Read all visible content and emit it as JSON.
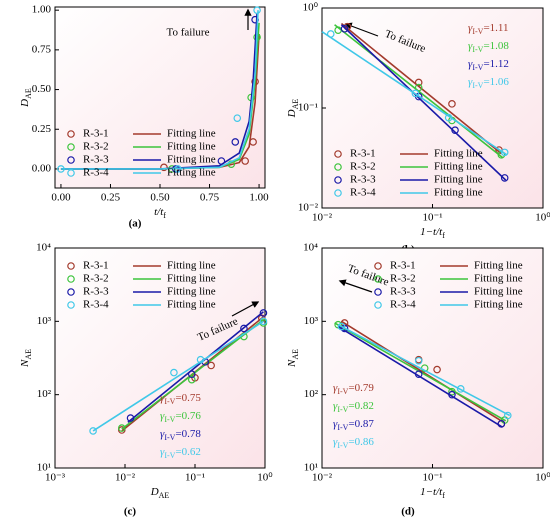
{
  "chart_data": [
    {
      "type": "scatter",
      "xscale": "linear",
      "yscale": "linear",
      "xlim": [
        -0.03,
        1.03
      ],
      "ylim": [
        -0.12,
        1.02
      ],
      "xticks": [
        {
          "value": 0,
          "label": "0.00"
        },
        {
          "value": 0.25,
          "label": "0.25"
        },
        {
          "value": 0.5,
          "label": "0.50"
        },
        {
          "value": 0.75,
          "label": "0.75"
        },
        {
          "value": 1,
          "label": "1.00"
        }
      ],
      "yticks": [
        {
          "value": 0,
          "label": "0.00"
        },
        {
          "value": 0.25,
          "label": "0.25"
        },
        {
          "value": 0.5,
          "label": "0.50"
        },
        {
          "value": 0.75,
          "label": "0.75"
        },
        {
          "value": 1,
          "label": "1.00"
        }
      ],
      "xlabel": [
        "t/t",
        "f"
      ],
      "ylabel": [
        "D",
        "AE"
      ],
      "panel_label": "(a)",
      "annotation": "To failure",
      "legend": "lower left",
      "series": [
        {
          "name": "R-3-1",
          "color": "#a33a2c",
          "x": [
            0.52,
            0.93,
            0.97,
            0.98
          ],
          "values": [
            0.01,
            0.05,
            0.17,
            0.55
          ],
          "fit": {
            "name": "Fitting line",
            "x": [
              0,
              0.5,
              0.8,
              0.9,
              0.95,
              0.98,
              1.0
            ],
            "values": [
              0,
              0,
              0.01,
              0.04,
              0.14,
              0.42,
              0.85
            ]
          }
        },
        {
          "name": "R-3-2",
          "color": "#3cc43c",
          "x": [
            0.56,
            0.86,
            0.96,
            0.99
          ],
          "values": [
            0.0,
            0.03,
            0.45,
            0.83
          ],
          "fit": {
            "name": "Fitting line",
            "x": [
              0,
              0.5,
              0.8,
              0.9,
              0.95,
              0.98,
              1.0
            ],
            "values": [
              0,
              0,
              0.01,
              0.06,
              0.22,
              0.55,
              0.92
            ]
          }
        },
        {
          "name": "R-3-3",
          "color": "#1a1aa8",
          "x": [
            0.58,
            0.81,
            0.88,
            0.98
          ],
          "values": [
            0.0,
            0.05,
            0.17,
            0.94
          ],
          "fit": {
            "name": "Fitting line",
            "x": [
              0,
              0.5,
              0.8,
              0.9,
              0.95,
              0.97,
              0.99
            ],
            "values": [
              0,
              0,
              0.02,
              0.1,
              0.3,
              0.55,
              0.98
            ]
          }
        },
        {
          "name": "R-3-4",
          "color": "#40c8e8",
          "x": [
            0.0,
            0.59,
            0.89,
            0.99
          ],
          "values": [
            0.0,
            0.0,
            0.32,
            1.0
          ],
          "fit": {
            "name": "Fitting line",
            "x": [
              0,
              0.5,
              0.8,
              0.9,
              0.95,
              0.98,
              0.995
            ],
            "values": [
              0,
              0,
              0.01,
              0.07,
              0.25,
              0.6,
              1.0
            ]
          }
        }
      ]
    },
    {
      "type": "scatter",
      "xscale": "log",
      "yscale": "log",
      "xlim": [
        0.01,
        1
      ],
      "ylim": [
        0.01,
        1
      ],
      "xticks": [
        {
          "value": 0.01,
          "label": "10⁻²"
        },
        {
          "value": 0.1,
          "label": "10⁻¹"
        },
        {
          "value": 1,
          "label": "10⁰"
        }
      ],
      "yticks": [
        {
          "value": 0.01,
          "label": "10⁻²"
        },
        {
          "value": 0.1,
          "label": "10⁻¹"
        },
        {
          "value": 1,
          "label": "10⁰"
        }
      ],
      "xlabel": [
        "1−t/t",
        "f"
      ],
      "ylabel": [
        "D",
        "AE"
      ],
      "panel_label": "(b)",
      "annotation": "To failure",
      "legend": "lower left",
      "series": [
        {
          "name": "R-3-1",
          "color": "#a33a2c",
          "x": [
            0.017,
            0.075,
            0.15,
            0.4
          ],
          "values": [
            0.65,
            0.18,
            0.11,
            0.038
          ],
          "gamma": [
            "γ",
            "I-V",
            "=1.11"
          ],
          "fit": {
            "name": "Fitting line",
            "x": [
              0.015,
              0.42
            ],
            "values": [
              0.7,
              0.035
            ]
          }
        },
        {
          "name": "R-3-2",
          "color": "#3cc43c",
          "x": [
            0.014,
            0.075,
            0.15,
            0.42
          ],
          "values": [
            0.6,
            0.16,
            0.075,
            0.034
          ],
          "gamma": [
            "γ",
            "I-V",
            "=1.08"
          ],
          "fit": {
            "name": "Fitting line",
            "x": [
              0.013,
              0.43
            ],
            "values": [
              0.68,
              0.032
            ]
          }
        },
        {
          "name": "R-3-3",
          "color": "#1a1aa8",
          "x": [
            0.016,
            0.075,
            0.16,
            0.45
          ],
          "values": [
            0.62,
            0.13,
            0.06,
            0.02
          ],
          "gamma": [
            "γ",
            "I-V",
            "=1.12"
          ],
          "fit": {
            "name": "Fitting line",
            "x": [
              0.015,
              0.46
            ],
            "values": [
              0.68,
              0.019
            ]
          }
        },
        {
          "name": "R-3-4",
          "color": "#40c8e8",
          "x": [
            0.012,
            0.07,
            0.14,
            0.45
          ],
          "values": [
            0.55,
            0.14,
            0.08,
            0.036
          ],
          "gamma": [
            "γ",
            "I-V",
            "=1.06"
          ],
          "fit": {
            "name": "Fitting line",
            "x": [
              0.01,
              0.47
            ],
            "values": [
              0.58,
              0.034
            ]
          }
        }
      ]
    },
    {
      "type": "scatter",
      "xscale": "log",
      "yscale": "log",
      "xlim": [
        0.001,
        1
      ],
      "ylim": [
        10,
        10000
      ],
      "xticks": [
        {
          "value": 0.001,
          "label": "10⁻³"
        },
        {
          "value": 0.01,
          "label": "10⁻²"
        },
        {
          "value": 0.1,
          "label": "10⁻¹"
        },
        {
          "value": 1,
          "label": "10⁰"
        }
      ],
      "yticks": [
        {
          "value": 10,
          "label": "10¹"
        },
        {
          "value": 100,
          "label": "10²"
        },
        {
          "value": 1000,
          "label": "10³"
        },
        {
          "value": 10000,
          "label": "10⁴"
        }
      ],
      "xlabel": [
        "D",
        "AE"
      ],
      "ylabel": [
        "N",
        "AE"
      ],
      "panel_label": "(c)",
      "annotation": "To failure",
      "legend": "upper left",
      "series": [
        {
          "name": "R-3-1",
          "color": "#a33a2c",
          "x": [
            0.009,
            0.1,
            0.17,
            0.9
          ],
          "values": [
            33,
            170,
            250,
            1100
          ],
          "gamma": [
            "γ",
            "I-V",
            "=0.75"
          ],
          "fit": {
            "name": "Fitting line",
            "x": [
              0.009,
              0.95
            ],
            "values": [
              32,
              1150
            ]
          }
        },
        {
          "name": "R-3-2",
          "color": "#3cc43c",
          "x": [
            0.009,
            0.09,
            0.5,
            0.95
          ],
          "values": [
            35,
            160,
            620,
            950
          ],
          "gamma": [
            "γ",
            "I-V",
            "=0.76"
          ],
          "fit": {
            "name": "Fitting line",
            "x": [
              0.009,
              0.95
            ],
            "values": [
              34,
              1050
            ]
          }
        },
        {
          "name": "R-3-3",
          "color": "#1a1aa8",
          "x": [
            0.012,
            0.09,
            0.14,
            0.5,
            0.95
          ],
          "values": [
            48,
            190,
            280,
            800,
            1300
          ],
          "gamma": [
            "γ",
            "I-V",
            "=0.78"
          ],
          "fit": {
            "name": "Fitting line",
            "x": [
              0.011,
              0.95
            ],
            "values": [
              42,
              1350
            ]
          }
        },
        {
          "name": "R-3-4",
          "color": "#40c8e8",
          "x": [
            0.0035,
            0.05,
            0.12,
            0.95
          ],
          "values": [
            32,
            200,
            300,
            1000
          ],
          "gamma": [
            "γ",
            "I-V",
            "=0.62"
          ],
          "fit": {
            "name": "Fitting line",
            "x": [
              0.0035,
              0.95
            ],
            "values": [
              32,
              1000
            ]
          }
        }
      ]
    },
    {
      "type": "scatter",
      "xscale": "log",
      "yscale": "log",
      "xlim": [
        0.01,
        1
      ],
      "ylim": [
        10,
        10000
      ],
      "xticks": [
        {
          "value": 0.01,
          "label": "10⁻²"
        },
        {
          "value": 0.1,
          "label": "10⁻¹"
        },
        {
          "value": 1,
          "label": "10⁰"
        }
      ],
      "yticks": [
        {
          "value": 10,
          "label": "10¹"
        },
        {
          "value": 100,
          "label": "10²"
        },
        {
          "value": 1000,
          "label": "10³"
        },
        {
          "value": 10000,
          "label": "10⁴"
        }
      ],
      "xlabel": [
        "1−t/t",
        "f"
      ],
      "ylabel": [
        "N",
        "AE"
      ],
      "panel_label": "(d)",
      "annotation": "To failure",
      "legend": "upper right",
      "series": [
        {
          "name": "R-3-1",
          "color": "#a33a2c",
          "x": [
            0.016,
            0.075,
            0.11,
            0.42
          ],
          "values": [
            950,
            300,
            220,
            40
          ],
          "gamma": [
            "γ",
            "I-V",
            "=0.79"
          ],
          "fit": {
            "name": "Fitting line",
            "x": [
              0.015,
              0.44
            ],
            "values": [
              1000,
              42
            ]
          }
        },
        {
          "name": "R-3-2",
          "color": "#3cc43c",
          "x": [
            0.014,
            0.085,
            0.15,
            0.45
          ],
          "values": [
            900,
            230,
            110,
            45
          ],
          "gamma": [
            "γ",
            "I-V",
            "=0.82"
          ],
          "fit": {
            "name": "Fitting line",
            "x": [
              0.013,
              0.46
            ],
            "values": [
              950,
              44
            ]
          }
        },
        {
          "name": "R-3-3",
          "color": "#1a1aa8",
          "x": [
            0.016,
            0.075,
            0.15,
            0.42
          ],
          "values": [
            800,
            190,
            100,
            40
          ],
          "gamma": [
            "γ",
            "I-V",
            "=0.87"
          ],
          "fit": {
            "name": "Fitting line",
            "x": [
              0.014,
              0.43
            ],
            "values": [
              850,
              36
            ]
          }
        },
        {
          "name": "R-3-4",
          "color": "#40c8e8",
          "x": [
            0.015,
            0.075,
            0.18,
            0.48
          ],
          "values": [
            850,
            290,
            120,
            52
          ],
          "gamma": [
            "γ",
            "I-V",
            "=0.86"
          ],
          "fit": {
            "name": "Fitting line",
            "x": [
              0.014,
              0.5
            ],
            "values": [
              900,
              52
            ]
          }
        }
      ]
    }
  ]
}
